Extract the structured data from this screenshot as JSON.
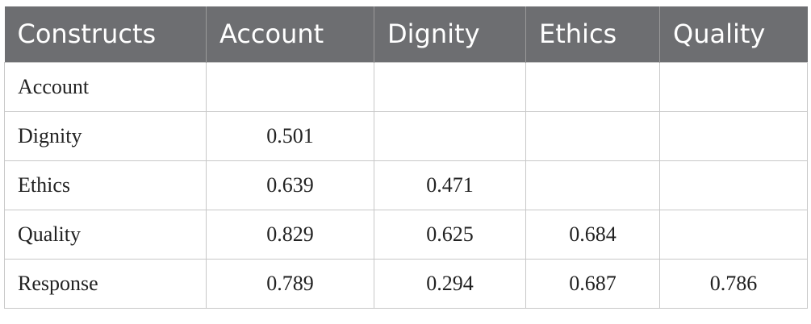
{
  "table": {
    "header": [
      "Constructs",
      "Account",
      "Dignity",
      "Ethics",
      "Quality"
    ],
    "rows": [
      [
        "Account",
        null,
        null,
        null,
        null
      ],
      [
        "Dignity",
        "0.501",
        null,
        null,
        null
      ],
      [
        "Ethics",
        "0.639",
        "0.471",
        null,
        null
      ],
      [
        "Quality",
        "0.829",
        "0.625",
        "0.684",
        null
      ],
      [
        "Response",
        "0.789",
        "0.294",
        "0.687",
        "0.786"
      ]
    ]
  }
}
